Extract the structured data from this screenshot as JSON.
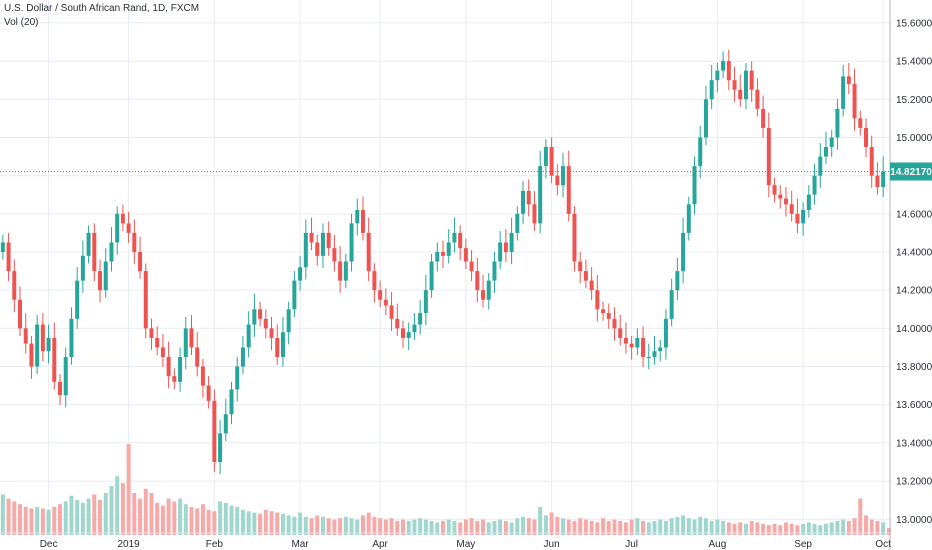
{
  "header": {
    "title": "U.S. Dollar / South African Rand, 1D, FXCM",
    "volume_label": "Vol (20)"
  },
  "colors": {
    "up": "#26a69a",
    "down": "#ef5350",
    "vol_up": "#9fd7cf",
    "vol_down": "#f7a9a7",
    "grid": "#e8ecf2",
    "price_line": "#26a69a",
    "price_tag": "#26a69a",
    "axis_text": "#2a2e39"
  },
  "chart_data": {
    "type": "candlestick",
    "y_axis": {
      "ticks": [
        "15.60000",
        "15.40000",
        "15.20000",
        "15.00000",
        "14.80000",
        "14.60000",
        "14.40000",
        "14.20000",
        "14.00000",
        "13.80000",
        "13.60000",
        "13.40000",
        "13.20000",
        "13.00000"
      ],
      "range": [
        12.97,
        15.72
      ]
    },
    "x_axis": {
      "labels": [
        "Dec",
        "2019",
        "Feb",
        "Mar",
        "Apr",
        "May",
        "Jun",
        "Jul",
        "Aug",
        "Sep",
        "Oct"
      ],
      "label_bar_index": [
        8,
        22,
        37,
        52,
        66,
        81,
        96,
        110,
        125,
        140,
        154
      ]
    },
    "last_price": 14.8217,
    "last_price_label": "14.82170",
    "closes": [
      14.45,
      14.3,
      14.15,
      14.0,
      13.92,
      13.8,
      14.02,
      13.88,
      13.95,
      13.72,
      13.65,
      13.85,
      14.05,
      14.25,
      14.38,
      14.5,
      14.3,
      14.2,
      14.35,
      14.45,
      14.6,
      14.55,
      14.5,
      14.4,
      14.3,
      14.0,
      13.95,
      13.9,
      13.85,
      13.75,
      13.72,
      13.85,
      14.0,
      13.9,
      13.8,
      13.7,
      13.62,
      13.3,
      13.45,
      13.55,
      13.68,
      13.8,
      13.9,
      14.02,
      14.1,
      14.05,
      14.0,
      13.95,
      13.85,
      13.98,
      14.1,
      14.25,
      14.32,
      14.5,
      14.45,
      14.38,
      14.5,
      14.42,
      14.35,
      14.25,
      14.35,
      14.55,
      14.62,
      14.5,
      14.3,
      14.2,
      14.15,
      14.12,
      14.05,
      14.0,
      13.95,
      13.98,
      14.02,
      14.08,
      14.2,
      14.35,
      14.4,
      14.38,
      14.45,
      14.5,
      14.42,
      14.35,
      14.3,
      14.2,
      14.15,
      14.25,
      14.35,
      14.45,
      14.4,
      14.5,
      14.6,
      14.72,
      14.65,
      14.55,
      14.85,
      14.95,
      14.8,
      14.75,
      14.85,
      14.6,
      14.35,
      14.3,
      14.25,
      14.2,
      14.1,
      14.08,
      14.05,
      14.0,
      13.95,
      13.92,
      13.9,
      13.95,
      13.85,
      13.85,
      13.88,
      13.9,
      14.05,
      14.2,
      14.3,
      14.5,
      14.65,
      14.85,
      15.0,
      15.2,
      15.3,
      15.35,
      15.4,
      15.3,
      15.25,
      15.2,
      15.35,
      15.25,
      15.15,
      15.05,
      14.75,
      14.7,
      14.68,
      14.65,
      14.6,
      14.55,
      14.62,
      14.7,
      14.8,
      14.9,
      14.95,
      15.0,
      15.15,
      15.32,
      15.28,
      15.1,
      15.05,
      14.95,
      14.8,
      14.74,
      14.8217
    ],
    "volume_scale_max": 1.0,
    "volumes": [
      0.29,
      0.26,
      0.24,
      0.22,
      0.2,
      0.19,
      0.2,
      0.19,
      0.18,
      0.2,
      0.22,
      0.24,
      0.28,
      0.25,
      0.23,
      0.26,
      0.29,
      0.25,
      0.3,
      0.35,
      0.42,
      0.37,
      0.65,
      0.3,
      0.26,
      0.33,
      0.3,
      0.23,
      0.21,
      0.26,
      0.24,
      0.26,
      0.22,
      0.2,
      0.19,
      0.22,
      0.18,
      0.17,
      0.24,
      0.23,
      0.21,
      0.2,
      0.18,
      0.17,
      0.16,
      0.15,
      0.18,
      0.17,
      0.16,
      0.15,
      0.14,
      0.13,
      0.16,
      0.13,
      0.12,
      0.14,
      0.13,
      0.12,
      0.11,
      0.12,
      0.13,
      0.12,
      0.11,
      0.14,
      0.16,
      0.13,
      0.12,
      0.11,
      0.12,
      0.1,
      0.11,
      0.1,
      0.11,
      0.12,
      0.11,
      0.1,
      0.09,
      0.1,
      0.11,
      0.1,
      0.09,
      0.11,
      0.12,
      0.1,
      0.11,
      0.09,
      0.1,
      0.11,
      0.1,
      0.09,
      0.12,
      0.13,
      0.12,
      0.11,
      0.2,
      0.14,
      0.16,
      0.13,
      0.12,
      0.11,
      0.1,
      0.12,
      0.11,
      0.1,
      0.09,
      0.12,
      0.1,
      0.11,
      0.1,
      0.09,
      0.11,
      0.12,
      0.1,
      0.09,
      0.1,
      0.11,
      0.1,
      0.12,
      0.13,
      0.14,
      0.12,
      0.11,
      0.13,
      0.12,
      0.1,
      0.11,
      0.1,
      0.09,
      0.08,
      0.09,
      0.08,
      0.1,
      0.09,
      0.08,
      0.07,
      0.08,
      0.07,
      0.09,
      0.08,
      0.07,
      0.08,
      0.09,
      0.08,
      0.07,
      0.08,
      0.09,
      0.1,
      0.11,
      0.1,
      0.12,
      0.26,
      0.14,
      0.11,
      0.1,
      0.09,
      0.05
    ]
  }
}
